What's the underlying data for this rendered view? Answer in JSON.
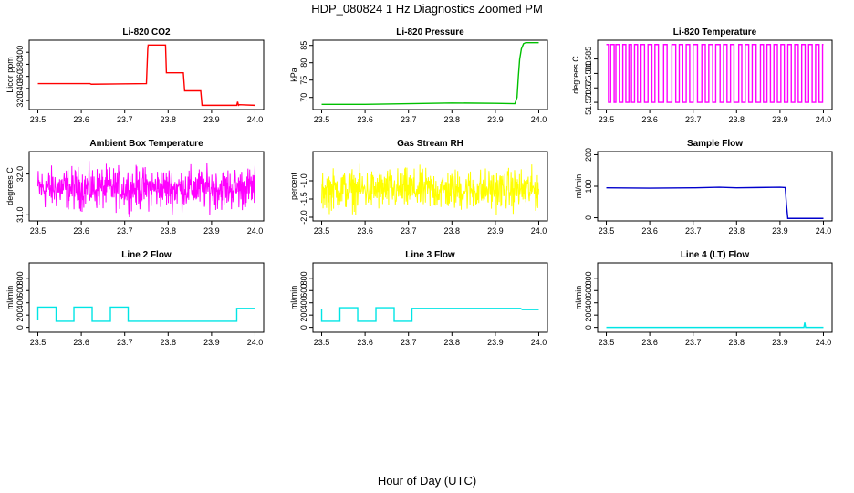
{
  "figure": {
    "title": "HDP_080824  1 Hz Diagnostics Zoomed PM",
    "xlabel": "Hour of Day (UTC)"
  },
  "chart_data": [
    {
      "type": "line",
      "title": "Li-820 CO2",
      "ylabel": "Licor ppm",
      "color": "#ff0000",
      "xlim": [
        23.48,
        24.02
      ],
      "ylim": [
        305,
        420
      ],
      "xticks": [
        23.5,
        23.6,
        23.7,
        23.8,
        23.9,
        24.0
      ],
      "xtick_labels": [
        "23.5",
        "23.6",
        "23.7",
        "23.8",
        "23.9",
        "24.0"
      ],
      "yticks": [
        320,
        340,
        360,
        380,
        400
      ],
      "ytick_labels": [
        "320",
        "340",
        "360",
        "380",
        "400"
      ],
      "x": [
        23.5,
        23.62,
        23.623,
        23.75,
        23.753,
        23.754,
        23.794,
        23.796,
        23.835,
        23.838,
        23.875,
        23.878,
        23.958,
        23.96,
        23.962,
        23.964,
        24.0
      ],
      "y": [
        348,
        348,
        347,
        348,
        405,
        412,
        412,
        366,
        366,
        336,
        336,
        312,
        312,
        318,
        312,
        313,
        312
      ]
    },
    {
      "type": "line",
      "title": "Li-820 Pressure",
      "ylabel": "kPa",
      "color": "#00c000",
      "xlim": [
        23.48,
        24.02
      ],
      "ylim": [
        66.5,
        86.5
      ],
      "xticks": [
        23.5,
        23.6,
        23.7,
        23.8,
        23.9,
        24.0
      ],
      "xtick_labels": [
        "23.5",
        "23.6",
        "23.7",
        "23.8",
        "23.9",
        "24.0"
      ],
      "yticks": [
        70,
        75,
        80,
        85
      ],
      "ytick_labels": [
        "70",
        "75",
        "80",
        "85"
      ],
      "x": [
        23.5,
        23.6,
        23.7,
        23.8,
        23.9,
        23.945,
        23.95,
        23.953,
        23.956,
        23.96,
        23.965,
        23.97,
        24.0
      ],
      "y": [
        68,
        68,
        68.2,
        68.4,
        68.3,
        68.2,
        70,
        76,
        81,
        84,
        85.5,
        85.8,
        85.8
      ]
    },
    {
      "type": "line",
      "title": "Li-820 Temperature",
      "ylabel": "degrees C",
      "color": "#ff00ff",
      "xlim": [
        23.48,
        24.02
      ],
      "ylim": [
        51.5675,
        51.5915
      ],
      "xticks": [
        23.5,
        23.6,
        23.7,
        23.8,
        23.9,
        24.0
      ],
      "xtick_labels": [
        "23.5",
        "23.6",
        "23.7",
        "23.8",
        "23.9",
        "24.0"
      ],
      "yticks": [
        51.57,
        51.575,
        51.58,
        51.585
      ],
      "ytick_labels": [
        "51.570",
        "51.575",
        "51.580",
        "51.585"
      ],
      "y_low": 51.57,
      "y_high": 51.59,
      "toggle_x": [
        23.5,
        23.505,
        23.51,
        23.518,
        23.522,
        23.53,
        23.538,
        23.545,
        23.552,
        23.558,
        23.565,
        23.572,
        23.58,
        23.588,
        23.596,
        23.605,
        23.612,
        23.62,
        23.632,
        23.64,
        23.651,
        23.66,
        23.668,
        23.676,
        23.684,
        23.692,
        23.7,
        23.71,
        23.72,
        23.728,
        23.736,
        23.745,
        23.752,
        23.762,
        23.77,
        23.778,
        23.786,
        23.794,
        23.805,
        23.812,
        23.82,
        23.828,
        23.836,
        23.845,
        23.855,
        23.862,
        23.87,
        23.878,
        23.886,
        23.894,
        23.902,
        23.91,
        23.918,
        23.926,
        23.934,
        23.942,
        23.95,
        23.958,
        23.966,
        23.974,
        23.982,
        23.99,
        23.998
      ]
    },
    {
      "type": "line",
      "title": "Ambient Box Temperature",
      "ylabel": "degrees C",
      "color": "#ff00ff",
      "xlim": [
        23.48,
        24.02
      ],
      "ylim": [
        30.85,
        32.55
      ],
      "xticks": [
        23.5,
        23.6,
        23.7,
        23.8,
        23.9,
        24.0
      ],
      "xtick_labels": [
        "23.5",
        "23.6",
        "23.7",
        "23.8",
        "23.9",
        "24.0"
      ],
      "yticks": [
        31.0,
        32.0
      ],
      "ytick_labels": [
        "31.0",
        "32.0"
      ],
      "noise": {
        "center": 31.65,
        "half_range": 0.5,
        "x_start": 23.5,
        "x_end": 24.0,
        "n": 620
      }
    },
    {
      "type": "line",
      "title": "Gas Stream RH",
      "ylabel": "percent",
      "color": "#ffff00",
      "xlim": [
        23.48,
        24.02
      ],
      "ylim": [
        -2.1,
        -0.2
      ],
      "xticks": [
        23.5,
        23.6,
        23.7,
        23.8,
        23.9,
        24.0
      ],
      "xtick_labels": [
        "23.5",
        "23.6",
        "23.7",
        "23.8",
        "23.9",
        "24.0"
      ],
      "yticks": [
        -2.0,
        -1.5,
        -1.0
      ],
      "ytick_labels": [
        "-2.0",
        "-1.5",
        "-1.0"
      ],
      "noise": {
        "center": -1.25,
        "half_range": 0.55,
        "x_start": 23.5,
        "x_end": 24.0,
        "n": 620
      }
    },
    {
      "type": "line",
      "title": "Sample Flow",
      "ylabel": "ml/min",
      "color": "#0000cc",
      "xlim": [
        23.48,
        24.02
      ],
      "ylim": [
        -10,
        210
      ],
      "xticks": [
        23.5,
        23.6,
        23.7,
        23.8,
        23.9,
        24.0
      ],
      "xtick_labels": [
        "23.5",
        "23.6",
        "23.7",
        "23.8",
        "23.9",
        "24.0"
      ],
      "yticks": [
        0,
        100,
        200
      ],
      "ytick_labels": [
        "0",
        "100",
        "200"
      ],
      "x": [
        23.5,
        23.6,
        23.7,
        23.76,
        23.8,
        23.85,
        23.9,
        23.912,
        23.915,
        23.918,
        24.0
      ],
      "y": [
        95,
        94,
        95,
        97,
        95,
        96,
        97,
        96,
        40,
        -2,
        -2
      ]
    },
    {
      "type": "line",
      "title": "Line 2 Flow",
      "ylabel": "ml/min",
      "color": "#00e5e5",
      "xlim": [
        23.48,
        24.02
      ],
      "ylim": [
        -80,
        1050
      ],
      "xticks": [
        23.5,
        23.6,
        23.7,
        23.8,
        23.9,
        24.0
      ],
      "xtick_labels": [
        "23.5",
        "23.6",
        "23.7",
        "23.8",
        "23.9",
        "24.0"
      ],
      "yticks": [
        0,
        200,
        400,
        600,
        800
      ],
      "ytick_labels": [
        "0",
        "200",
        "400",
        "600",
        "800"
      ],
      "x": [
        23.5,
        23.5,
        23.542,
        23.542,
        23.583,
        23.583,
        23.625,
        23.625,
        23.667,
        23.667,
        23.708,
        23.708,
        23.958,
        23.958,
        24.0
      ],
      "y": [
        120,
        330,
        330,
        100,
        100,
        330,
        330,
        100,
        100,
        330,
        330,
        100,
        100,
        310,
        310
      ]
    },
    {
      "type": "line",
      "title": "Line 3 Flow",
      "ylabel": "ml/min",
      "color": "#00e5e5",
      "xlim": [
        23.48,
        24.02
      ],
      "ylim": [
        -80,
        1050
      ],
      "xticks": [
        23.5,
        23.6,
        23.7,
        23.8,
        23.9,
        24.0
      ],
      "xtick_labels": [
        "23.5",
        "23.6",
        "23.7",
        "23.8",
        "23.9",
        "24.0"
      ],
      "yticks": [
        0,
        200,
        400,
        600,
        800
      ],
      "ytick_labels": [
        "0",
        "200",
        "400",
        "600",
        "800"
      ],
      "x": [
        23.5,
        23.5,
        23.5,
        23.542,
        23.542,
        23.583,
        23.583,
        23.625,
        23.625,
        23.667,
        23.667,
        23.708,
        23.708,
        23.958,
        23.962,
        24.0
      ],
      "y": [
        300,
        100,
        100,
        100,
        320,
        320,
        100,
        100,
        320,
        320,
        100,
        100,
        310,
        310,
        290,
        290
      ]
    },
    {
      "type": "line",
      "title": "Line 4 (LT) Flow",
      "ylabel": "ml/min",
      "color": "#00e5e5",
      "xlim": [
        23.48,
        24.02
      ],
      "ylim": [
        -80,
        1050
      ],
      "xticks": [
        23.5,
        23.6,
        23.7,
        23.8,
        23.9,
        24.0
      ],
      "xtick_labels": [
        "23.5",
        "23.6",
        "23.7",
        "23.8",
        "23.9",
        "24.0"
      ],
      "yticks": [
        0,
        200,
        400,
        600,
        800
      ],
      "ytick_labels": [
        "0",
        "200",
        "400",
        "600",
        "800"
      ],
      "x": [
        23.5,
        23.95,
        23.955,
        23.957,
        23.959,
        23.961,
        24.0
      ],
      "y": [
        0,
        0,
        0,
        80,
        0,
        0,
        0
      ]
    }
  ]
}
